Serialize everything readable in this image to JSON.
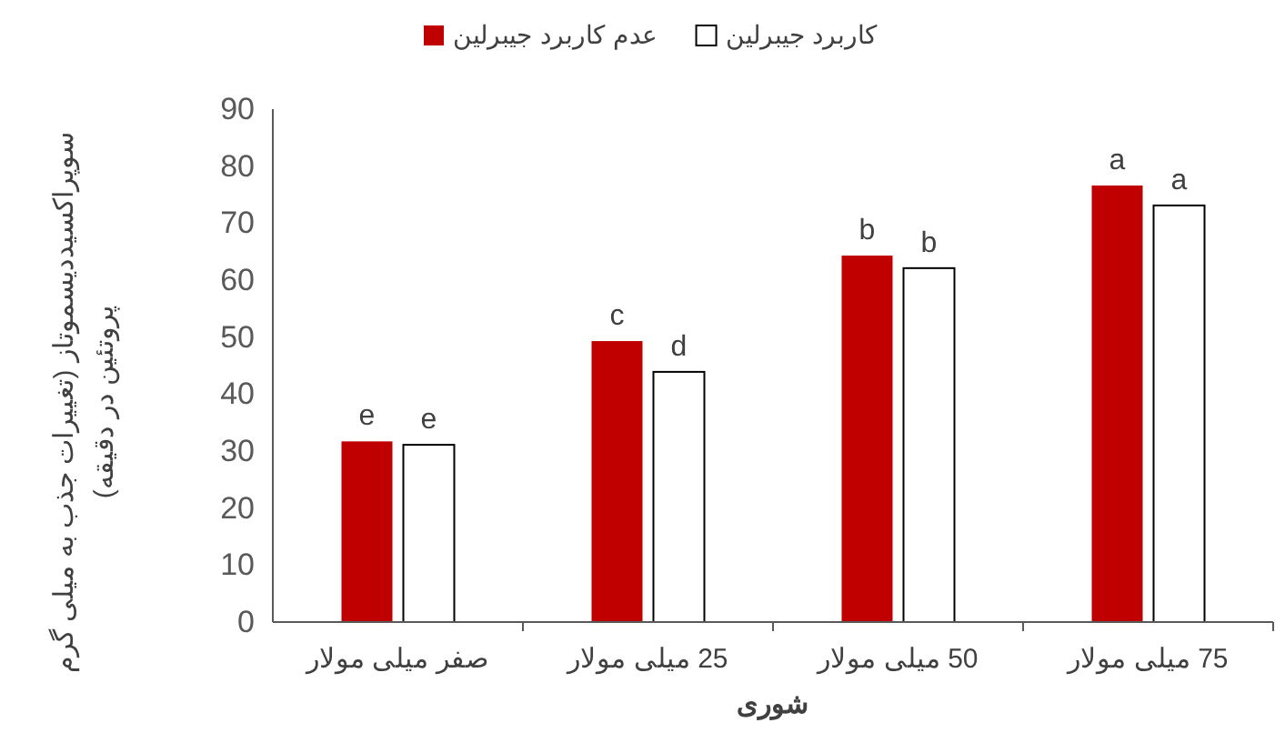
{
  "chart_data": {
    "type": "bar",
    "ylabel": "سوپراکسیددیسموتاز (تغییرات جذب به میلی گرم پروتئین در دقیقه)",
    "xlabel": "شوری",
    "categories": [
      "صفر میلی مولار",
      "25 میلی مولار",
      "50 میلی مولار",
      "75 میلی مولار"
    ],
    "series": [
      {
        "name": "عدم کاربرد جیبرلین",
        "color": "#c00000",
        "values": [
          31.7,
          49.3,
          64.3,
          76.6
        ]
      },
      {
        "name": "کاربرد جیبرلین",
        "color": "#ffffff",
        "values": [
          31.1,
          43.9,
          62.1,
          73.1
        ]
      }
    ],
    "ylim": [
      0,
      90
    ],
    "yticks": [
      0,
      10,
      20,
      30,
      40,
      50,
      60,
      70,
      80,
      90
    ],
    "grid": false,
    "legend": "top",
    "annotations": [
      {
        "text": "e",
        "x": "صفر میلی مولار",
        "y": 31.7
      },
      {
        "text": "e",
        "x": "صفر میلی مولار",
        "y": 31.1
      },
      {
        "text": "c",
        "x": "25 میلی مولار",
        "y": 49.3
      },
      {
        "text": "d",
        "x": "25 میلی مولار",
        "y": 43.9
      },
      {
        "text": "b",
        "x": "50 میلی مولار",
        "y": 64.3
      },
      {
        "text": "b",
        "x": "50 میلی مولار",
        "y": 62.1
      },
      {
        "text": "a",
        "x": "75 میلی مولار",
        "y": 76.6
      },
      {
        "text": "a",
        "x": "75 میلی مولار",
        "y": 73.1
      }
    ]
  }
}
